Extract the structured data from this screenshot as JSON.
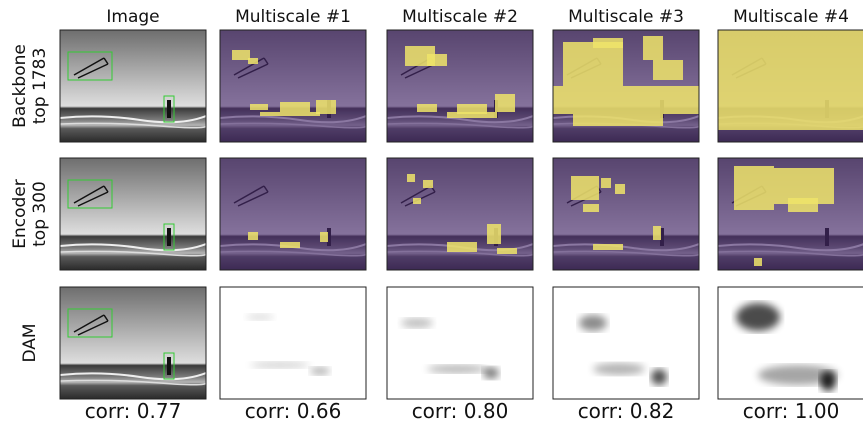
{
  "columns": [
    "Image",
    "Multiscale #1",
    "Multiscale #2",
    "Multiscale #3",
    "Multiscale #4"
  ],
  "rows": [
    {
      "label_lines": [
        "Backbone",
        "top 1783"
      ]
    },
    {
      "label_lines": [
        "Encoder",
        "top 300"
      ]
    },
    {
      "label_lines": [
        "DAM"
      ]
    }
  ],
  "corr": [
    "corr: 0.77",
    "corr: 0.66",
    "corr: 0.80",
    "corr: 0.82",
    "corr: 1.00"
  ]
}
